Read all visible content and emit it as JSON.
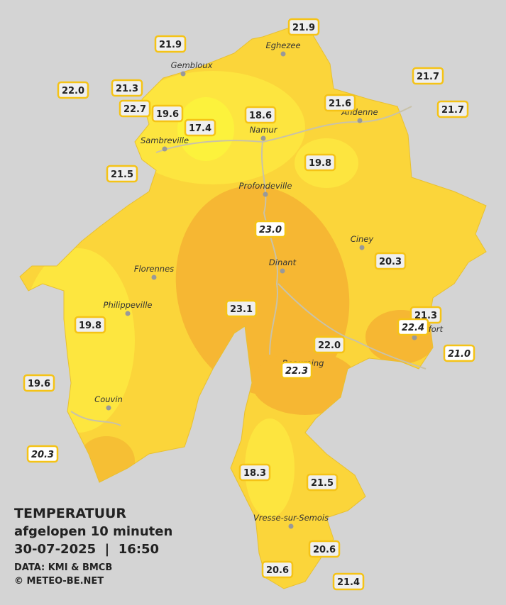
{
  "legend": {
    "title": "TEMPERATUUR",
    "subtitle": "afgelopen 10 minuten",
    "datetime": "30-07-2025  |  16:50",
    "source": "DATA: KMI & BMCB",
    "credit": "© METEO-BE.NET"
  },
  "cities": [
    {
      "name": "Eghezee"
    },
    {
      "name": "Gembloux"
    },
    {
      "name": "Andenne"
    },
    {
      "name": "Namur"
    },
    {
      "name": "Sambreville"
    },
    {
      "name": "Profondeville"
    },
    {
      "name": "Ciney"
    },
    {
      "name": "Florennes"
    },
    {
      "name": "Dinant"
    },
    {
      "name": "Philippeville"
    },
    {
      "name": "Beauraing"
    },
    {
      "name": "Couvin"
    },
    {
      "name": "Vresse-sur-Semois"
    },
    {
      "name": "Rochefort"
    }
  ],
  "stations": [
    {
      "label": "21.9"
    },
    {
      "label": "21.9"
    },
    {
      "label": "22.0"
    },
    {
      "label": "21.3"
    },
    {
      "label": "22.7"
    },
    {
      "label": "19.6"
    },
    {
      "label": "17.4"
    },
    {
      "label": "18.6"
    },
    {
      "label": "21.6"
    },
    {
      "label": "21.7"
    },
    {
      "label": "21.7"
    },
    {
      "label": "19.8"
    },
    {
      "label": "21.5"
    },
    {
      "label": "23.0",
      "italic": true
    },
    {
      "label": "20.3"
    },
    {
      "label": "23.1"
    },
    {
      "label": "19.8"
    },
    {
      "label": "21.3"
    },
    {
      "label": "22.4",
      "italic": true
    },
    {
      "label": "22.0"
    },
    {
      "label": "21.0",
      "italic": true
    },
    {
      "label": "22.3",
      "italic": true
    },
    {
      "label": "19.6"
    },
    {
      "label": "20.3",
      "italic": true
    },
    {
      "label": "18.3"
    },
    {
      "label": "21.5"
    },
    {
      "label": "20.6"
    },
    {
      "label": "20.6"
    },
    {
      "label": "21.4"
    }
  ]
}
